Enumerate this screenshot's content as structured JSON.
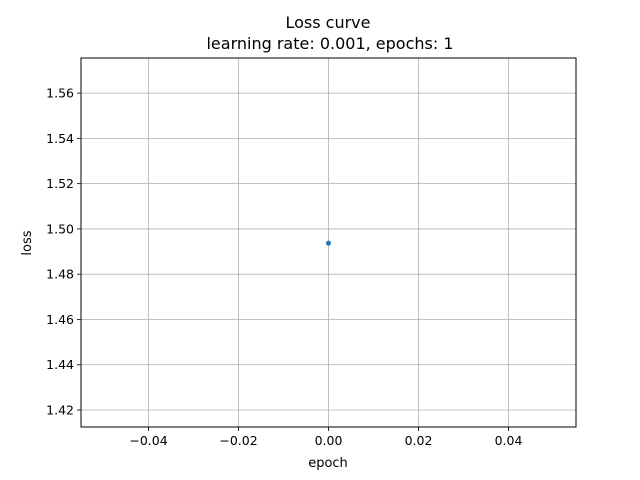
{
  "chart_data": {
    "type": "scatter",
    "title": "Loss curve",
    "subtitle": "learning rate: 0.001, epochs: 1",
    "xlabel": "epoch",
    "ylabel": "loss",
    "xlim": [
      -0.055,
      0.055
    ],
    "ylim": [
      1.4125,
      1.5755
    ],
    "xticks": [
      -0.04,
      -0.02,
      0.0,
      0.02,
      0.04
    ],
    "xtick_labels": [
      "−0.04",
      "−0.02",
      "0.00",
      "0.02",
      "0.04"
    ],
    "yticks": [
      1.42,
      1.44,
      1.46,
      1.48,
      1.5,
      1.52,
      1.54,
      1.56
    ],
    "ytick_labels": [
      "1.42",
      "1.44",
      "1.46",
      "1.48",
      "1.50",
      "1.52",
      "1.54",
      "1.56"
    ],
    "grid": true,
    "series": [
      {
        "x": [
          0
        ],
        "y": [
          1.4937
        ],
        "color": "#1f77b4"
      }
    ]
  }
}
